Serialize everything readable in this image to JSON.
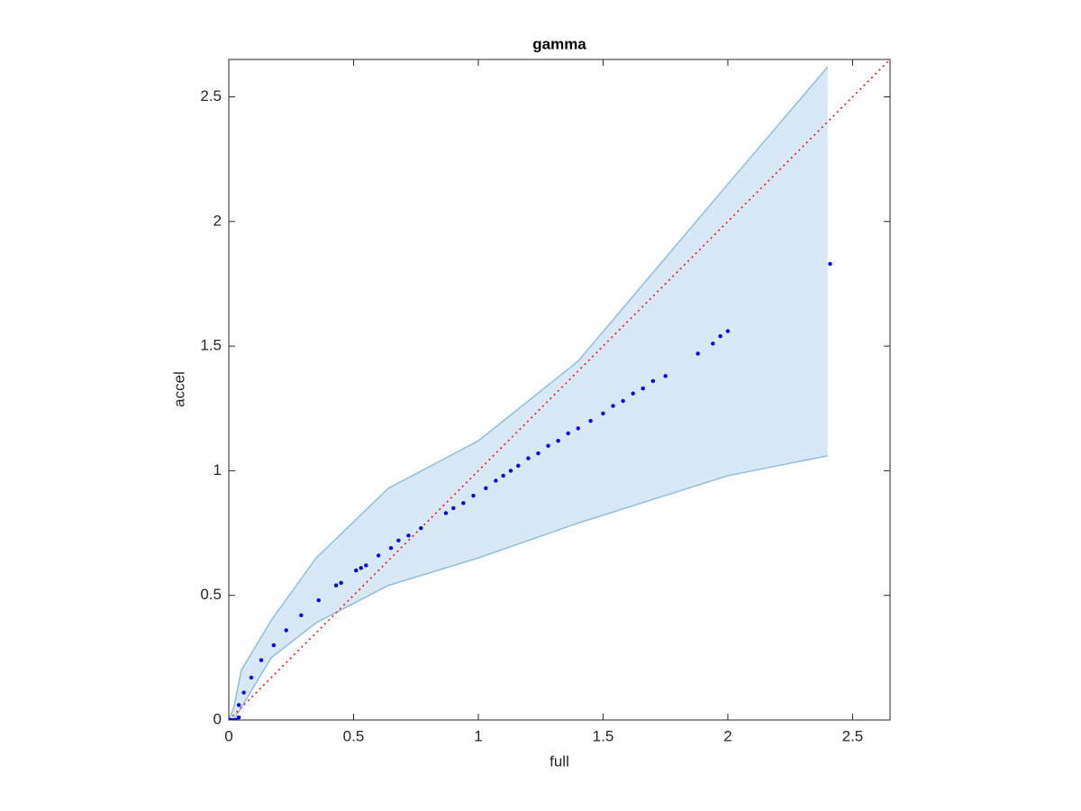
{
  "chart_data": {
    "type": "scatter",
    "title": "gamma",
    "xlabel": "full",
    "ylabel": "accel",
    "xlim": [
      0,
      2.65
    ],
    "ylim": [
      0,
      2.65
    ],
    "xticks": [
      0,
      0.5,
      1,
      1.5,
      2,
      2.5
    ],
    "yticks": [
      0,
      0.5,
      1,
      1.5,
      2,
      2.5
    ],
    "box": true,
    "series": [
      {
        "type": "band",
        "color": "#d9e8f5",
        "edge_color": "#8dbfdf",
        "x": [
          0,
          0.02,
          0.05,
          0.17,
          0.35,
          0.64,
          1.0,
          1.4,
          2.0,
          2.4
        ],
        "upper": [
          0,
          0.05,
          0.2,
          0.4,
          0.65,
          0.93,
          1.12,
          1.44,
          2.15,
          2.62
        ],
        "lower": [
          0,
          0.0,
          0.05,
          0.25,
          0.39,
          0.54,
          0.65,
          0.79,
          0.98,
          1.06
        ]
      },
      {
        "type": "line",
        "style": "dotted",
        "color": "#ff0000",
        "x": [
          0,
          2.65
        ],
        "values": [
          0,
          2.65
        ]
      },
      {
        "type": "scatter",
        "color": "#0000ff",
        "x": [
          0.0,
          0.01,
          0.02,
          0.03,
          0.04,
          0.04,
          0.06,
          0.09,
          0.13,
          0.18,
          0.23,
          0.29,
          0.36,
          0.43,
          0.45,
          0.51,
          0.53,
          0.55,
          0.6,
          0.65,
          0.68,
          0.72,
          0.77,
          0.87,
          0.9,
          0.94,
          0.98,
          1.03,
          1.07,
          1.1,
          1.13,
          1.16,
          1.2,
          1.24,
          1.28,
          1.32,
          1.36,
          1.4,
          1.45,
          1.5,
          1.54,
          1.58,
          1.62,
          1.66,
          1.7,
          1.75,
          1.88,
          1.94,
          1.97,
          2.0,
          2.41
        ],
        "values": [
          0.0,
          0.0,
          0.0,
          0.0,
          0.01,
          0.06,
          0.11,
          0.17,
          0.24,
          0.3,
          0.36,
          0.42,
          0.48,
          0.54,
          0.55,
          0.6,
          0.61,
          0.62,
          0.66,
          0.69,
          0.72,
          0.74,
          0.77,
          0.83,
          0.85,
          0.87,
          0.9,
          0.93,
          0.96,
          0.98,
          1.0,
          1.02,
          1.05,
          1.07,
          1.1,
          1.12,
          1.15,
          1.17,
          1.2,
          1.23,
          1.26,
          1.28,
          1.31,
          1.33,
          1.36,
          1.38,
          1.47,
          1.51,
          1.54,
          1.56,
          1.83
        ]
      }
    ]
  }
}
